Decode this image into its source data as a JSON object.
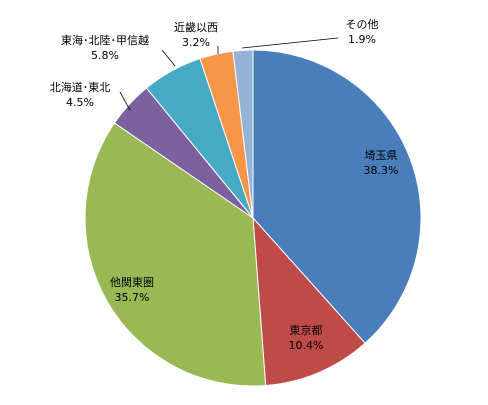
{
  "chart_data": {
    "type": "pie",
    "categories": [
      "埼玉県",
      "東京都",
      "他関東圏",
      "北海道･東北",
      "東海･北陸･甲信越",
      "近畿以西",
      "その他"
    ],
    "values": [
      38.3,
      10.4,
      35.7,
      4.5,
      5.8,
      3.2,
      1.9
    ],
    "value_labels": [
      "38.3%",
      "10.4%",
      "35.7%",
      "4.5%",
      "5.8%",
      "3.2%",
      "1.9%"
    ],
    "colors": [
      "#4a7ebb",
      "#be4b48",
      "#98b954",
      "#7d60a0",
      "#46aac5",
      "#f79646",
      "#95b3d7"
    ]
  }
}
